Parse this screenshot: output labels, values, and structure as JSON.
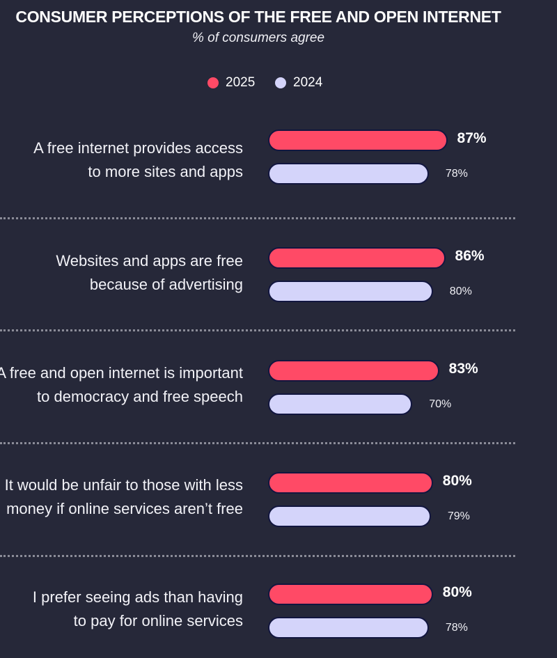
{
  "chart_data": {
    "type": "bar",
    "title": "CONSUMER PERCEPTIONS OF THE FREE AND OPEN INTERNET",
    "subtitle": "% of consumers agree",
    "legend": [
      {
        "name": "2025",
        "color": "#ff4a66"
      },
      {
        "name": "2024",
        "color": "#d4d4fa"
      }
    ],
    "categories": [
      [
        "A free internet provides access",
        "to more sites and apps"
      ],
      [
        "Websites and apps are free",
        "because of advertising"
      ],
      [
        "A free and open internet is important",
        "to democracy and free speech"
      ],
      [
        "It would be unfair to those with less",
        "money if online services aren’t free"
      ],
      [
        "I prefer seeing ads than having",
        "to pay for online services"
      ]
    ],
    "series": [
      {
        "name": "2025",
        "color": "#ff4a66",
        "values": [
          87,
          86,
          83,
          80,
          80
        ],
        "labels": [
          "87%",
          "86%",
          "83%",
          "80%",
          "80%"
        ]
      },
      {
        "name": "2024",
        "color": "#d4d4fa",
        "values": [
          78,
          80,
          70,
          79,
          78
        ],
        "labels": [
          "78%",
          "80%",
          "70%",
          "79%",
          "78%"
        ]
      }
    ],
    "xlim": [
      0,
      100
    ],
    "grid": false,
    "legend_position": "top"
  }
}
